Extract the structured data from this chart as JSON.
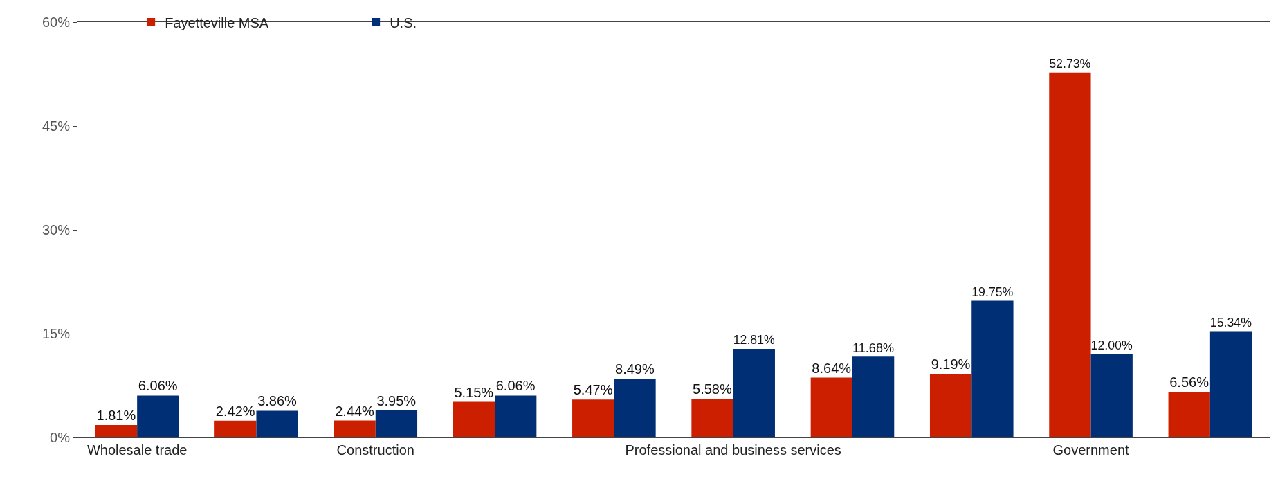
{
  "chart_data": {
    "type": "bar",
    "categories": [
      "Wholesale trade",
      null,
      "Construction",
      null,
      null,
      "Professional and business services",
      null,
      null,
      "Government",
      null
    ],
    "series": [
      {
        "name": "Fayetteville MSA",
        "color": "#cc1f00",
        "values": [
          1.81,
          2.42,
          2.44,
          5.15,
          5.47,
          5.58,
          8.64,
          9.19,
          52.73,
          6.56
        ],
        "value_labels": [
          "1.81%",
          "2.42%",
          "2.44%",
          "5.15%",
          "5.47%",
          "5.58%",
          "8.64%",
          "9.19%",
          "52.73%",
          "6.56%"
        ]
      },
      {
        "name": "U.S.",
        "color": "#002f75",
        "values": [
          6.06,
          3.86,
          3.95,
          6.06,
          8.49,
          12.81,
          11.68,
          19.75,
          12.0,
          15.34
        ],
        "value_labels": [
          "6.06%",
          "3.86%",
          "3.95%",
          "6.06%",
          "8.49%",
          "12.81%",
          "11.68%",
          "19.75%",
          "12.00%",
          "15.34%"
        ]
      }
    ],
    "ylim": [
      0,
      60
    ],
    "yticks": [
      {
        "value": 0,
        "label": "0%"
      },
      {
        "value": 15,
        "label": "15%"
      },
      {
        "value": 30,
        "label": "30%"
      },
      {
        "value": 45,
        "label": "45%"
      },
      {
        "value": 60,
        "label": "60%"
      }
    ],
    "grid": false,
    "legend": "top left"
  }
}
